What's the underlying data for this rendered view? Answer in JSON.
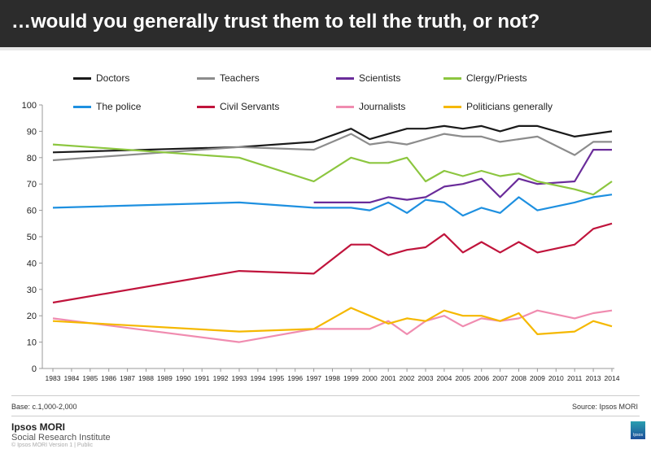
{
  "header": {
    "title": "…would you generally trust them to tell the truth, or not?"
  },
  "chart_data": {
    "type": "line",
    "title": "",
    "xlabel": "",
    "ylabel": "",
    "categories": [
      "1983",
      "1984",
      "1985",
      "1986",
      "1987",
      "1988",
      "1989",
      "1990",
      "1991",
      "1992",
      "1993",
      "1994",
      "1995",
      "1996",
      "1997",
      "1998",
      "1999",
      "2000",
      "2001",
      "2002",
      "2003",
      "2004",
      "2005",
      "2006",
      "2007",
      "2008",
      "2009",
      "2010",
      "2011",
      "2013",
      "2014"
    ],
    "yticks": [
      "0",
      "10",
      "20",
      "30",
      "40",
      "50",
      "60",
      "70",
      "80",
      "90",
      "100"
    ],
    "ylim": [
      0,
      100
    ],
    "grid": false,
    "legend": "top",
    "x": [
      "1983",
      "1993",
      "1997",
      "1999",
      "2000",
      "2001",
      "2002",
      "2003",
      "2004",
      "2005",
      "2006",
      "2007",
      "2008",
      "2009",
      "2011",
      "2013",
      "2014"
    ],
    "series": [
      {
        "name": "Doctors",
        "color": "#1a1a1a",
        "values": [
          82,
          84,
          86,
          91,
          87,
          89,
          91,
          91,
          92,
          91,
          92,
          90,
          92,
          92,
          88,
          89,
          90
        ]
      },
      {
        "name": "Teachers",
        "color": "#8c8c8c",
        "values": [
          79,
          84,
          83,
          89,
          85,
          86,
          85,
          87,
          89,
          88,
          88,
          86,
          87,
          88,
          81,
          86,
          86
        ]
      },
      {
        "name": "Scientists",
        "color": "#6a2c9a",
        "values": [
          null,
          null,
          63,
          63,
          63,
          65,
          64,
          65,
          69,
          70,
          72,
          65,
          72,
          70,
          71,
          83,
          83
        ]
      },
      {
        "name": "Clergy/Priests",
        "color": "#8cc63f",
        "values": [
          85,
          80,
          71,
          80,
          78,
          78,
          80,
          71,
          75,
          73,
          75,
          73,
          74,
          71,
          68,
          66,
          71
        ]
      },
      {
        "name": "The police",
        "color": "#1e90e0",
        "values": [
          61,
          63,
          61,
          61,
          60,
          63,
          59,
          64,
          63,
          58,
          61,
          59,
          65,
          60,
          63,
          65,
          66
        ]
      },
      {
        "name": "Civil Servants",
        "color": "#c0143c",
        "values": [
          25,
          37,
          36,
          47,
          47,
          43,
          45,
          46,
          51,
          44,
          48,
          44,
          48,
          44,
          47,
          53,
          55
        ]
      },
      {
        "name": "Journalists",
        "color": "#f08cb0",
        "values": [
          19,
          10,
          15,
          15,
          15,
          18,
          13,
          18,
          20,
          16,
          19,
          18,
          19,
          22,
          19,
          21,
          22
        ]
      },
      {
        "name": "Politicians generally",
        "color": "#f5b800",
        "values": [
          18,
          14,
          15,
          23,
          20,
          17,
          19,
          18,
          22,
          20,
          20,
          18,
          21,
          13,
          14,
          18,
          16
        ]
      }
    ]
  },
  "footer": {
    "base": "Base: c.1,000-2,000",
    "source": "Source: Ipsos MORI",
    "brand": "Ipsos MORI",
    "subbrand": "Social Research Institute",
    "copyright": "© Ipsos MORI    Version 1 | Public",
    "logo_text": "Ipsos"
  }
}
